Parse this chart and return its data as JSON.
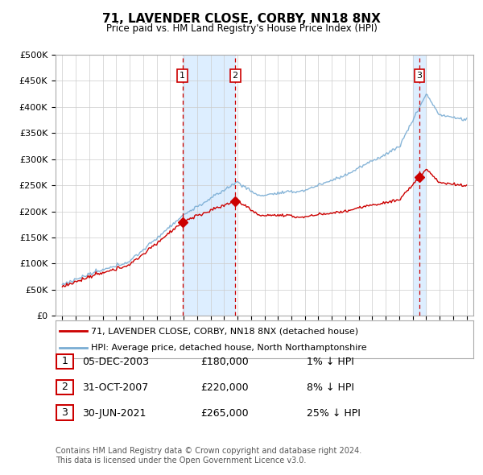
{
  "title": "71, LAVENDER CLOSE, CORBY, NN18 8NX",
  "subtitle": "Price paid vs. HM Land Registry's House Price Index (HPI)",
  "legend_line1": "71, LAVENDER CLOSE, CORBY, NN18 8NX (detached house)",
  "legend_line2": "HPI: Average price, detached house, North Northamptonshire",
  "footer1": "Contains HM Land Registry data © Crown copyright and database right 2024.",
  "footer2": "This data is licensed under the Open Government Licence v3.0.",
  "sales": [
    {
      "date_num": 2003.92,
      "price": 180000,
      "label": "1",
      "date_str": "05-DEC-2003",
      "pct": "1%"
    },
    {
      "date_num": 2007.83,
      "price": 220000,
      "label": "2",
      "date_str": "31-OCT-2007",
      "pct": "8%"
    },
    {
      "date_num": 2021.5,
      "price": 265000,
      "label": "3",
      "date_str": "30-JUN-2021",
      "pct": "25%"
    }
  ],
  "hpi_color": "#7aadd4",
  "sale_color": "#cc0000",
  "vline_color": "#cc0000",
  "band_color": "#ddeeff",
  "ylim": [
    0,
    500000
  ],
  "yticks": [
    0,
    50000,
    100000,
    150000,
    200000,
    250000,
    300000,
    350000,
    400000,
    450000,
    500000
  ],
  "xlim_start": 1994.5,
  "xlim_end": 2025.5
}
